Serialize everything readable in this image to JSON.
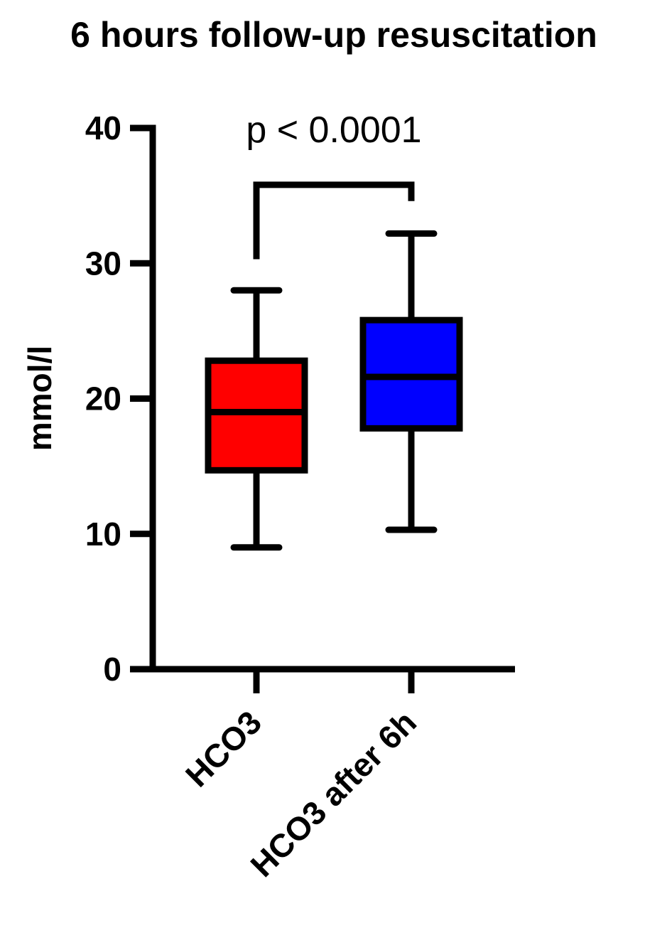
{
  "chart_data": {
    "type": "box",
    "title": "6 hours follow-up resuscitation",
    "xlabel": "",
    "ylabel": "mmol/l",
    "ylim": [
      0,
      40
    ],
    "yticks": [
      0,
      10,
      20,
      30,
      40
    ],
    "categories": [
      "HCO3",
      "HCO3 after 6h"
    ],
    "boxes": [
      {
        "category": "HCO3",
        "min": 9,
        "q1": 14.7,
        "median": 19,
        "q3": 22.8,
        "max": 28,
        "color": "#ff0000"
      },
      {
        "category": "HCO3 after 6h",
        "min": 10.3,
        "q1": 17.8,
        "median": 21.6,
        "q3": 25.8,
        "max": 32.2,
        "color": "#0000ff"
      }
    ],
    "annotations": [
      {
        "text": "p < 0.0001",
        "between": [
          "HCO3",
          "HCO3 after 6h"
        ]
      }
    ],
    "grid": false,
    "legend": "none"
  }
}
